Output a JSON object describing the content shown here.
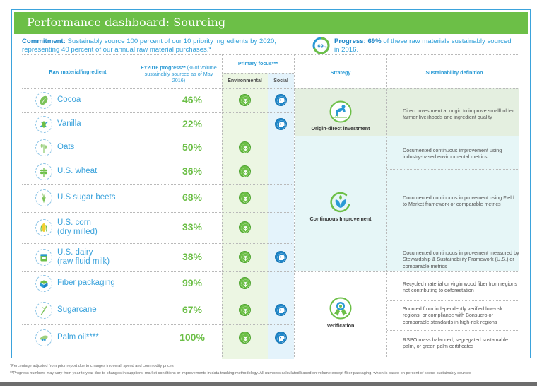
{
  "header": {
    "title": "Performance dashboard: Sourcing"
  },
  "commitment": {
    "label": "Commitment:",
    "text": " Sustainably source 100 percent of our 10 priority ingredients by 2020, representing 40 percent of our annual raw material purchases.*"
  },
  "progress": {
    "ring_value": "69",
    "ring_unit": "%",
    "percent_complete": 69,
    "label": "Progress: 69%",
    "text": " of these raw materials sustainably sourced in 2016."
  },
  "columns": {
    "ingredient": "Raw material/ingredient",
    "progress_bold": "FY2016 progress**",
    "progress_light": " (% of volume sustainably sourced as of May 2016)",
    "primary_focus": "Primary focus***",
    "environmental": "Environmental",
    "social": "Social",
    "strategy": "Strategy",
    "definition": "Sustainability definition"
  },
  "rows": [
    {
      "name": "Cocoa",
      "name2": "",
      "progress": "46%",
      "icon": "cocoa-icon",
      "environmental": true,
      "social": true
    },
    {
      "name": "Vanilla",
      "name2": "",
      "progress": "22%",
      "icon": "vanilla-icon",
      "environmental": false,
      "social": true
    },
    {
      "name": "Oats",
      "name2": "",
      "progress": "50%",
      "icon": "oats-icon",
      "environmental": true,
      "social": false
    },
    {
      "name": "U.S. wheat",
      "name2": "",
      "progress": "36%",
      "icon": "wheat-icon",
      "environmental": true,
      "social": false
    },
    {
      "name": "U.S sugar beets",
      "name2": "",
      "progress": "68%",
      "icon": "sugar-beet-icon",
      "environmental": true,
      "social": false
    },
    {
      "name": "U.S. corn",
      "name2": "(dry milled)",
      "progress": "33%",
      "icon": "corn-icon",
      "environmental": true,
      "social": false
    },
    {
      "name": "U.S. dairy",
      "name2": "(raw fluid milk)",
      "progress": "38%",
      "icon": "milk-icon",
      "environmental": true,
      "social": true
    },
    {
      "name": "Fiber packaging",
      "name2": "",
      "progress": "99%",
      "icon": "box-icon",
      "environmental": true,
      "social": false
    },
    {
      "name": "Sugarcane",
      "name2": "",
      "progress": "67%",
      "icon": "sugarcane-icon",
      "environmental": true,
      "social": true
    },
    {
      "name": "Palm oil****",
      "name2": "",
      "progress": "100%",
      "icon": "palm-oil-icon",
      "environmental": true,
      "social": true
    }
  ],
  "strategies": [
    {
      "label": "Origin-direct investment",
      "icon": "farmer-icon"
    },
    {
      "label": "Continuous Improvement",
      "icon": "sprout-cycle-icon"
    },
    {
      "label": "Verification",
      "icon": "award-ribbon-icon"
    }
  ],
  "definitions": [
    "Direct investment at origin to improve smallholder farmer livelihoods and ingredient quality",
    "Documented continuous improvement using industry-based environmental metrics",
    "Documented continuous improvement using Field to Market framework or comparable metrics",
    "Documented continuous improvement measured by Stewardship & Sustainability Framework (U.S.) or comparable metrics",
    "Recycled material or virgin wood fiber from regions not contributing to deforestation",
    "Sourced from independently verified low-risk regions, or compliance with Bonsucro or comparable standards in high-risk regions",
    "RSPO mass balanced, segregated sustainable palm, or green palm certificates"
  ],
  "footnotes": [
    "*Percentage adjusted from prior report due to changes in overall spend and commodity prices",
    "**Progress numbers may vary from year to year due to changes in suppliers, market conditions or improvements in data tracking methodology. All numbers calculated based on volume except fiber packaging, which is based on percent of spend sustainably sourced"
  ],
  "colors": {
    "brand_green": "#6cbf47",
    "brand_blue": "#2a9ad5",
    "env_bg": "#ecf6e3",
    "social_bg": "#e4f3fb"
  }
}
